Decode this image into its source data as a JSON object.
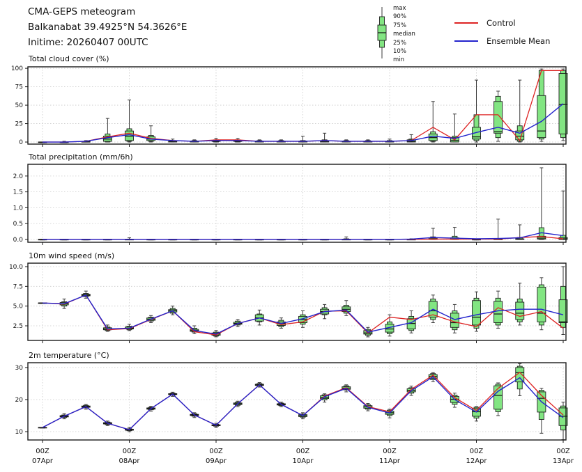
{
  "header": {
    "line1": "CMA-GEPS meteogram",
    "line2": "Balkanabat 39.4925°N 54.3626°E",
    "line3": "Initime: 20260407 00UTC"
  },
  "legend": {
    "box_labels": [
      "max",
      "90%",
      "75%",
      "median",
      "25%",
      "10%",
      "min"
    ],
    "entries": [
      {
        "label": "Control",
        "color": "#dd2222"
      },
      {
        "label": "Ensemble Mean",
        "color": "#2323cc"
      }
    ]
  },
  "colors": {
    "control": "#dd2222",
    "ensemble_mean": "#2323cc",
    "box_fill": "#82e582",
    "box_edge": "#1f1f1f",
    "median": "#111111"
  },
  "chart_data": {
    "type": "meteogram-boxplot",
    "x": {
      "n_points": 25,
      "step_hours": 6,
      "day_tick_indices": [
        0,
        4,
        8,
        12,
        16,
        20,
        24
      ],
      "day_tick_labels": [
        [
          "00Z",
          "07Apr"
        ],
        [
          "00Z",
          "08Apr"
        ],
        [
          "00Z",
          "09Apr"
        ],
        [
          "00Z",
          "10Apr"
        ],
        [
          "00Z",
          "11Apr"
        ],
        [
          "00Z",
          "12Apr"
        ],
        [
          "00Z",
          "13Apr"
        ]
      ]
    },
    "panels": [
      {
        "key": "cloud",
        "title": "Total cloud cover (%)",
        "ytick_values": [
          0,
          25,
          50,
          75,
          100
        ],
        "ytick_labels": [
          "0",
          "25",
          "50",
          "75",
          "100"
        ],
        "ylim": [
          -2.8,
          102
        ],
        "control": [
          0,
          0,
          1,
          7,
          12,
          5,
          2,
          1,
          3,
          3,
          1,
          1,
          1,
          2,
          1,
          1,
          1,
          2,
          20,
          3,
          37,
          37,
          2,
          97,
          97
        ],
        "ensemble_mean": [
          0,
          0,
          1,
          6,
          10,
          4,
          2,
          1,
          2,
          2,
          1,
          1,
          1,
          2,
          1,
          1,
          1,
          2,
          8,
          5,
          13,
          20,
          12,
          28,
          52
        ],
        "box": {
          "min": [
            0,
            0,
            0,
            0,
            0,
            0,
            0,
            0,
            0,
            0,
            0,
            0,
            0,
            0,
            0,
            0,
            0,
            0,
            0,
            0,
            0,
            1,
            0,
            1,
            2
          ],
          "p10": [
            0,
            0,
            0,
            0,
            1,
            1,
            0,
            0,
            0,
            0,
            0,
            0,
            0,
            0,
            0,
            0,
            0,
            0,
            1,
            0,
            2,
            6,
            1,
            4,
            6
          ],
          "p25": [
            0,
            0,
            0,
            1,
            2,
            2,
            0,
            0,
            1,
            1,
            0,
            0,
            0,
            0,
            0,
            0,
            0,
            0,
            2,
            0,
            4,
            12,
            3,
            6,
            11
          ],
          "median": [
            0,
            0,
            0,
            4,
            8,
            4,
            1,
            1,
            1,
            1,
            1,
            1,
            1,
            1,
            1,
            1,
            1,
            1,
            6,
            2,
            7,
            14,
            8,
            15,
            51
          ],
          "p75": [
            0,
            0,
            1,
            8,
            15,
            7,
            1,
            1,
            2,
            2,
            1,
            1,
            1,
            2,
            1,
            1,
            1,
            3,
            11,
            6,
            20,
            55,
            15,
            63,
            93
          ],
          "p90": [
            0,
            0,
            1,
            11,
            18,
            9,
            2,
            2,
            3,
            3,
            2,
            2,
            2,
            3,
            2,
            2,
            2,
            4,
            14,
            8,
            37,
            62,
            22,
            97,
            97
          ],
          "max": [
            0,
            1,
            2,
            32,
            57,
            22,
            4,
            3,
            5,
            5,
            3,
            3,
            8,
            12,
            3,
            3,
            4,
            10,
            55,
            38,
            84,
            69,
            84,
            99,
            99
          ]
        }
      },
      {
        "key": "precip",
        "title": "Total precipitation (mm/6h)",
        "ytick_values": [
          0.0,
          0.5,
          1.0,
          1.5,
          2.0
        ],
        "ytick_labels": [
          "0.0",
          "0.5",
          "1.0",
          "1.5",
          "2.0"
        ],
        "ylim": [
          -0.09,
          2.37
        ],
        "control": [
          0,
          0,
          0,
          0,
          0,
          0,
          0,
          0,
          0,
          0,
          0,
          0,
          0,
          0,
          0,
          0,
          0,
          0,
          0.01,
          0.01,
          0.01,
          0.01,
          0.06,
          0.09,
          0.02
        ],
        "ensemble_mean": [
          0,
          0,
          0,
          0,
          0,
          0,
          0,
          0,
          0,
          0,
          0,
          0,
          0,
          0,
          0,
          0,
          0,
          0.01,
          0.06,
          0.04,
          0.02,
          0.03,
          0.05,
          0.21,
          0.12
        ],
        "box": {
          "min": [
            0,
            0,
            0,
            0,
            0,
            0,
            0,
            0,
            0,
            0,
            0,
            0,
            0,
            0,
            0,
            0,
            0,
            0,
            0,
            0,
            0,
            0,
            0,
            0,
            0
          ],
          "p10": [
            0,
            0,
            0,
            0,
            0,
            0,
            0,
            0,
            0,
            0,
            0,
            0,
            0,
            0,
            0,
            0,
            0,
            0,
            0,
            0,
            0,
            0,
            0,
            0,
            0
          ],
          "p25": [
            0,
            0,
            0,
            0,
            0,
            0,
            0,
            0,
            0,
            0,
            0,
            0,
            0,
            0,
            0,
            0,
            0,
            0,
            0,
            0,
            0,
            0,
            0,
            0.01,
            0
          ],
          "median": [
            0,
            0,
            0,
            0,
            0,
            0,
            0,
            0,
            0,
            0,
            0,
            0,
            0,
            0,
            0,
            0,
            0,
            0,
            0.01,
            0.01,
            0,
            0,
            0.01,
            0.04,
            0.02
          ],
          "p75": [
            0,
            0,
            0,
            0,
            0,
            0,
            0,
            0,
            0,
            0,
            0,
            0,
            0,
            0,
            0,
            0,
            0,
            0,
            0.04,
            0.05,
            0,
            0.01,
            0.02,
            0.1,
            0.06
          ],
          "p90": [
            0,
            0,
            0,
            0,
            0.01,
            0,
            0,
            0,
            0,
            0,
            0,
            0,
            0,
            0,
            0.02,
            0,
            0,
            0.01,
            0.08,
            0.1,
            0,
            0.02,
            0.06,
            0.37,
            0.13
          ],
          "max": [
            0,
            0,
            0,
            0,
            0.05,
            0,
            0,
            0,
            0,
            0,
            0,
            0,
            0,
            0,
            0.08,
            0,
            0,
            0.02,
            0.35,
            0.38,
            0.02,
            0.64,
            0.46,
            2.26,
            1.53
          ]
        }
      },
      {
        "key": "wind",
        "title": "10m wind speed (m/s)",
        "ytick_values": [
          2.5,
          5.0,
          7.5,
          10.0
        ],
        "ytick_labels": [
          "2.5",
          "5.0",
          "7.5",
          "10.0"
        ],
        "ylim": [
          0.65,
          10.44
        ],
        "control": [
          5.4,
          5.25,
          6.4,
          2.0,
          2.15,
          3.3,
          4.4,
          1.75,
          1.35,
          2.8,
          3.5,
          2.65,
          3.0,
          4.35,
          4.4,
          1.6,
          3.6,
          3.3,
          3.9,
          3.0,
          2.4,
          4.8,
          3.7,
          4.3,
          2.2
        ],
        "ensemble_mean": [
          5.4,
          5.3,
          6.4,
          2.1,
          2.2,
          3.35,
          4.4,
          1.9,
          1.45,
          2.8,
          3.5,
          2.8,
          3.4,
          4.3,
          4.5,
          1.7,
          2.3,
          2.9,
          4.6,
          3.3,
          3.9,
          4.4,
          4.6,
          4.6,
          3.9
        ],
        "box": {
          "min": [
            5.4,
            4.7,
            6.0,
            1.8,
            1.9,
            2.9,
            3.9,
            1.5,
            1.1,
            2.4,
            2.6,
            2.2,
            2.3,
            3.4,
            3.8,
            1.1,
            1.2,
            1.6,
            2.9,
            1.6,
            1.8,
            2.2,
            2.6,
            2.0,
            1.4
          ],
          "p10": [
            5.4,
            5.0,
            6.2,
            1.9,
            2.0,
            3.1,
            4.1,
            1.7,
            1.2,
            2.6,
            3.0,
            2.4,
            2.7,
            3.9,
            4.1,
            1.3,
            1.5,
            1.9,
            3.3,
            2.0,
            2.2,
            2.6,
            3.0,
            2.6,
            2.3
          ],
          "p25": [
            5.4,
            5.15,
            6.3,
            2.0,
            2.1,
            3.2,
            4.25,
            1.8,
            1.3,
            2.7,
            3.1,
            2.55,
            2.9,
            4.0,
            4.3,
            1.45,
            1.7,
            2.1,
            3.6,
            2.3,
            2.6,
            2.9,
            3.3,
            3.0,
            2.9
          ],
          "median": [
            5.4,
            5.3,
            6.4,
            2.1,
            2.2,
            3.35,
            4.4,
            1.9,
            1.45,
            2.8,
            3.5,
            2.8,
            3.3,
            4.3,
            4.6,
            1.6,
            2.1,
            2.8,
            4.4,
            2.9,
            3.6,
            4.0,
            4.1,
            4.1,
            3.0
          ],
          "p75": [
            5.4,
            5.45,
            6.5,
            2.25,
            2.35,
            3.5,
            4.55,
            2.05,
            1.6,
            2.95,
            3.9,
            3.0,
            3.7,
            4.6,
            4.9,
            1.9,
            2.7,
            3.4,
            5.6,
            4.1,
            5.7,
            5.6,
            5.5,
            7.4,
            5.8
          ],
          "p90": [
            5.4,
            5.55,
            6.6,
            2.35,
            2.45,
            3.6,
            4.7,
            2.2,
            1.7,
            3.1,
            4.0,
            3.2,
            3.9,
            4.8,
            5.1,
            2.05,
            3.0,
            3.7,
            5.9,
            4.4,
            6.0,
            6.0,
            5.9,
            7.7,
            7.5
          ],
          "max": [
            5.4,
            5.9,
            6.9,
            2.6,
            2.7,
            3.8,
            5.0,
            2.5,
            1.9,
            3.3,
            4.5,
            3.5,
            4.4,
            5.2,
            5.7,
            2.3,
            3.9,
            4.4,
            6.4,
            5.2,
            6.8,
            6.9,
            7.9,
            8.6,
            10.0
          ]
        }
      },
      {
        "key": "temp",
        "title": "2m temperature (°C)",
        "ytick_values": [
          10,
          20,
          30
        ],
        "ytick_labels": [
          "10",
          "20",
          "30"
        ],
        "ylim": [
          7.4,
          31.5
        ],
        "control": [
          11.3,
          14.8,
          17.8,
          12.6,
          10.6,
          17.2,
          21.7,
          15.2,
          12.0,
          18.7,
          24.6,
          18.5,
          15.0,
          21.1,
          23.7,
          17.8,
          16.2,
          23.2,
          27.6,
          20.6,
          16.6,
          23.5,
          28.5,
          21.3,
          15.2
        ],
        "ensemble_mean": [
          11.3,
          14.8,
          17.8,
          12.6,
          10.6,
          17.2,
          21.7,
          15.2,
          12.0,
          18.7,
          24.6,
          18.5,
          15.0,
          20.9,
          23.5,
          17.6,
          15.8,
          22.8,
          27.1,
          20.0,
          16.1,
          22.6,
          26.8,
          19.3,
          14.4
        ],
        "box": {
          "min": [
            11.3,
            14.0,
            17.0,
            11.9,
            10.0,
            16.4,
            21.0,
            14.4,
            11.3,
            17.8,
            23.9,
            17.8,
            14.0,
            19.2,
            22.4,
            16.5,
            14.3,
            21.3,
            25.6,
            17.6,
            13.3,
            15.0,
            21.2,
            9.5,
            7.5
          ],
          "p10": [
            11.3,
            14.4,
            17.4,
            12.2,
            10.3,
            16.8,
            21.4,
            14.8,
            11.7,
            18.2,
            24.2,
            18.1,
            14.5,
            19.9,
            23.0,
            17.0,
            15.0,
            22.0,
            26.2,
            18.5,
            14.2,
            16.2,
            23.3,
            13.8,
            10.5
          ],
          "p25": [
            11.3,
            14.6,
            17.6,
            12.4,
            10.45,
            17.0,
            21.55,
            15.0,
            11.85,
            18.45,
            24.4,
            18.3,
            14.7,
            20.3,
            23.2,
            17.3,
            15.4,
            22.4,
            26.6,
            19.1,
            14.8,
            17.0,
            25.5,
            16.1,
            11.9
          ],
          "median": [
            11.3,
            14.8,
            17.8,
            12.6,
            10.6,
            17.2,
            21.7,
            15.2,
            12.0,
            18.7,
            24.6,
            18.5,
            15.0,
            20.7,
            23.6,
            17.7,
            15.9,
            22.9,
            27.2,
            20.1,
            16.2,
            21.3,
            28.4,
            20.4,
            14.8
          ],
          "p75": [
            11.3,
            15.0,
            18.0,
            12.8,
            10.75,
            17.4,
            21.85,
            15.4,
            12.15,
            18.95,
            24.8,
            18.7,
            15.3,
            21.2,
            24.0,
            18.1,
            16.4,
            23.4,
            27.8,
            21.0,
            17.2,
            24.3,
            30.0,
            22.4,
            17.4
          ],
          "p90": [
            11.3,
            15.2,
            18.2,
            13.0,
            10.9,
            17.6,
            22.0,
            15.6,
            12.3,
            19.2,
            25.0,
            18.9,
            15.5,
            21.5,
            24.3,
            18.4,
            16.7,
            23.7,
            28.1,
            21.4,
            17.6,
            24.8,
            30.4,
            22.9,
            18.0
          ],
          "max": [
            11.3,
            15.6,
            18.5,
            13.3,
            11.3,
            17.9,
            22.3,
            15.9,
            12.6,
            19.5,
            25.3,
            19.2,
            15.9,
            21.8,
            24.6,
            18.8,
            17.0,
            24.2,
            28.4,
            22.0,
            17.8,
            25.2,
            31.2,
            23.5,
            19.2
          ]
        }
      }
    ]
  }
}
